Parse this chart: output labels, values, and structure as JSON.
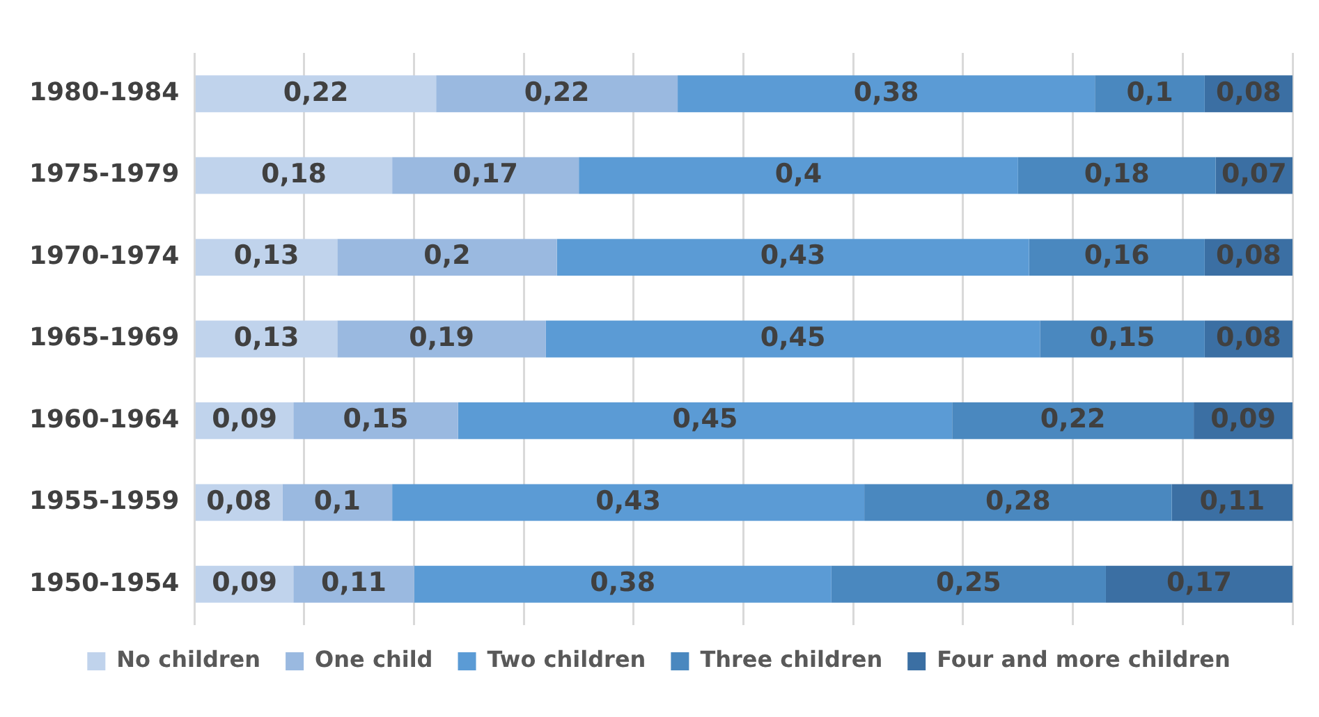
{
  "chart_data": {
    "type": "bar",
    "orientation": "horizontal",
    "stacked": true,
    "categories": [
      "1980-1984",
      "1975-1979",
      "1970-1974",
      "1965-1969",
      "1960-1964",
      "1955-1959",
      "1950-1954"
    ],
    "series": [
      {
        "name": "No children",
        "color": "#c0d3ec",
        "values": [
          0.22,
          0.18,
          0.13,
          0.13,
          0.09,
          0.08,
          0.09
        ],
        "value_labels": [
          "0,22",
          "0,18",
          "0,13",
          "0,13",
          "0,09",
          "0,08",
          "0,09"
        ]
      },
      {
        "name": "One child",
        "color": "#9ab9e0",
        "values": [
          0.22,
          0.17,
          0.2,
          0.19,
          0.15,
          0.1,
          0.11
        ],
        "value_labels": [
          "0,22",
          "0,17",
          "0,2",
          "0,19",
          "0,15",
          "0,1",
          "0,11"
        ]
      },
      {
        "name": "Two children",
        "color": "#5b9bd5",
        "values": [
          0.38,
          0.4,
          0.43,
          0.45,
          0.45,
          0.43,
          0.38
        ],
        "value_labels": [
          "0,38",
          "0,4",
          "0,43",
          "0,45",
          "0,45",
          "0,43",
          "0,38"
        ]
      },
      {
        "name": "Three children",
        "color": "#4a88bf",
        "values": [
          0.1,
          0.18,
          0.16,
          0.15,
          0.22,
          0.28,
          0.25
        ],
        "value_labels": [
          "0,1",
          "0,18",
          "0,16",
          "0,15",
          "0,22",
          "0,28",
          "0,25"
        ]
      },
      {
        "name": "Four and more children",
        "color": "#3b6fa3",
        "values": [
          0.08,
          0.07,
          0.08,
          0.08,
          0.09,
          0.11,
          0.17
        ],
        "value_labels": [
          "0,08",
          "0,07",
          "0,08",
          "0,08",
          "0,09",
          "0,11",
          "0,17"
        ]
      }
    ],
    "xlim": [
      0,
      1
    ],
    "xticks": [
      {
        "value": 0,
        "label": null
      },
      {
        "value": 0.1,
        "label": null
      },
      {
        "value": 0.2,
        "label": null
      },
      {
        "value": 0.3,
        "label": null
      },
      {
        "value": 0.4,
        "label": null
      },
      {
        "value": 0.5,
        "label": null
      },
      {
        "value": 0.6,
        "label": null
      },
      {
        "value": 0.7,
        "label": null
      },
      {
        "value": 0.8,
        "label": null
      },
      {
        "value": 0.9,
        "label": null
      },
      {
        "value": 1,
        "label": null
      }
    ],
    "tick_labels": "y",
    "grid": "x",
    "legend": "bottom"
  }
}
